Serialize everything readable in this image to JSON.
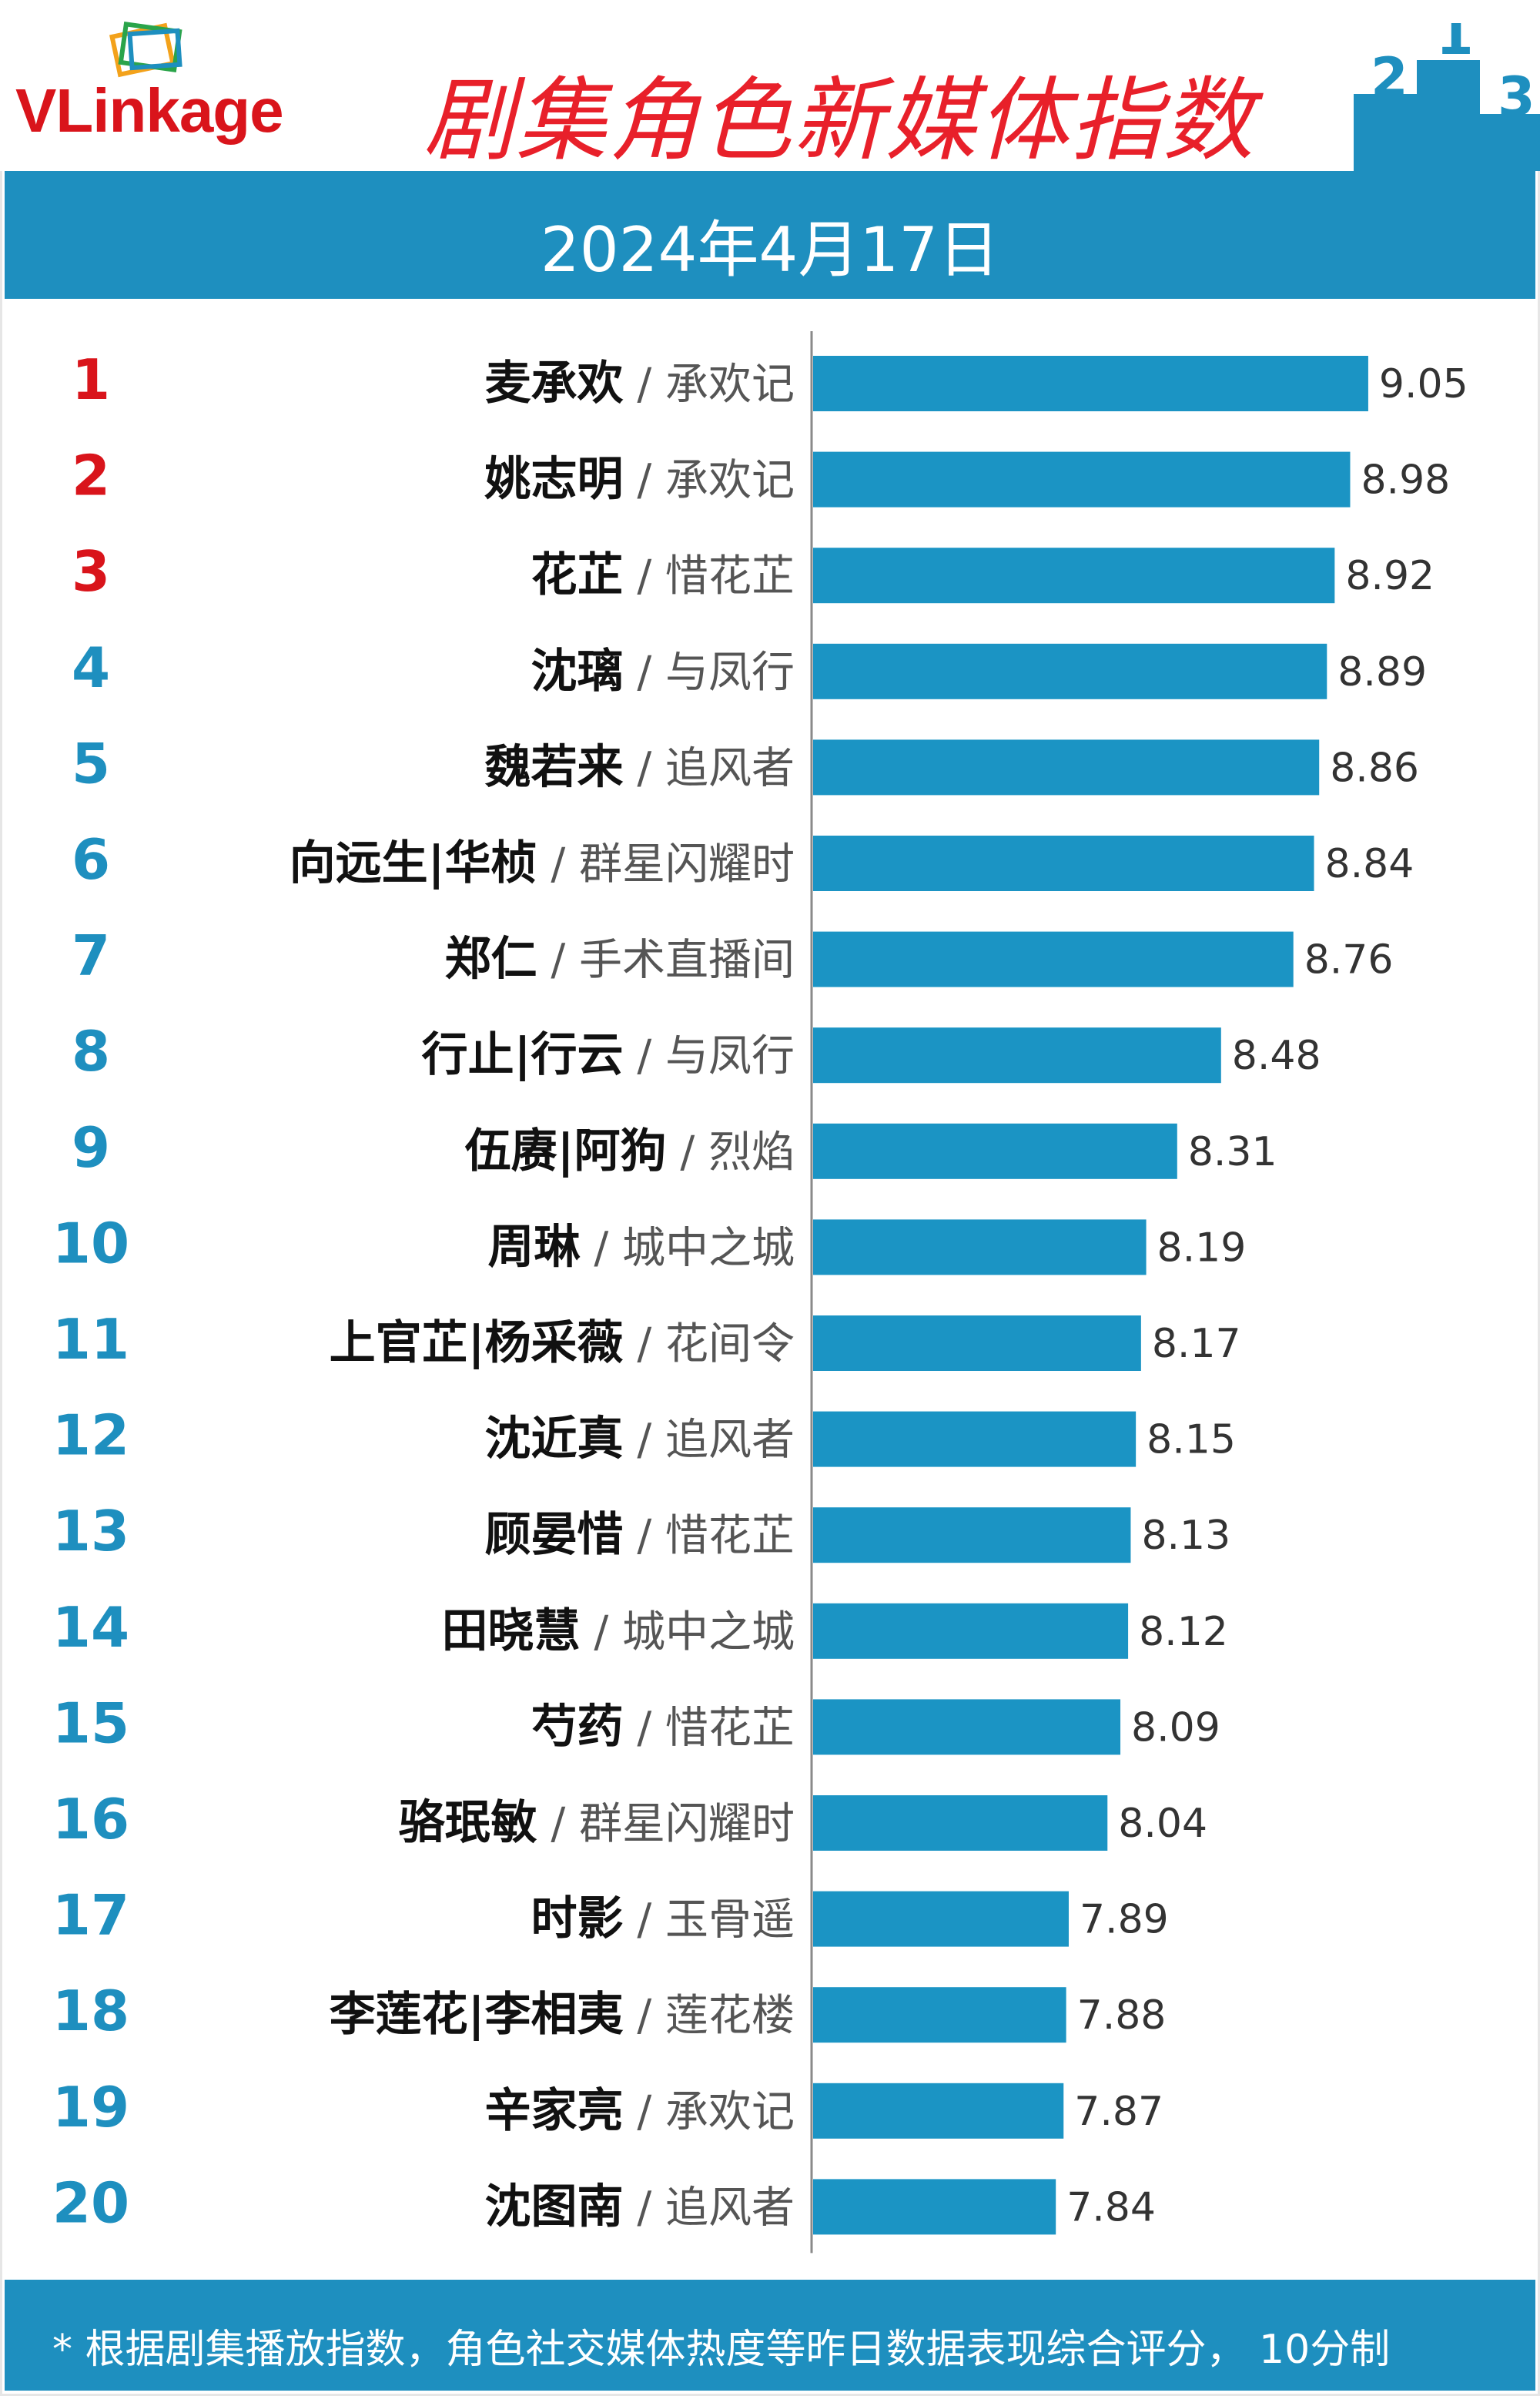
{
  "header": {
    "logo_text": "VLinkage",
    "title": "剧集角色新媒体指数",
    "podium_labels": [
      "2",
      "1",
      "3"
    ]
  },
  "date": "2024年4月17日",
  "footer": {
    "note": "* 根据剧集播放指数，角色社交媒体热度等昨日数据表现综合评分， 10分制"
  },
  "colors": {
    "bar": "#1b94c4",
    "rank_top3": "#d9141b",
    "rank_other": "#1e8fbf",
    "band": "#1e8fbf",
    "title": "#e8202a"
  },
  "chart_data": {
    "type": "bar",
    "orientation": "horizontal",
    "title": "剧集角色新媒体指数",
    "xlim": [
      6.9,
      9.25
    ],
    "categories": [
      {
        "rank": "1",
        "role": "麦承欢",
        "show": "承欢记",
        "value": 9.05
      },
      {
        "rank": "2",
        "role": "姚志明",
        "show": "承欢记",
        "value": 8.98
      },
      {
        "rank": "3",
        "role": "花芷",
        "show": "惜花芷",
        "value": 8.92
      },
      {
        "rank": "4",
        "role": "沈璃",
        "show": "与凤行",
        "value": 8.89
      },
      {
        "rank": "5",
        "role": "魏若来",
        "show": "追风者",
        "value": 8.86
      },
      {
        "rank": "6",
        "role": "向远生|华桢",
        "show": "群星闪耀时",
        "value": 8.84
      },
      {
        "rank": "7",
        "role": "郑仁",
        "show": "手术直播间",
        "value": 8.76
      },
      {
        "rank": "8",
        "role": "行止|行云",
        "show": "与凤行",
        "value": 8.48
      },
      {
        "rank": "9",
        "role": "伍赓|阿狗",
        "show": "烈焰",
        "value": 8.31
      },
      {
        "rank": "10",
        "role": "周琳",
        "show": "城中之城",
        "value": 8.19
      },
      {
        "rank": "11",
        "role": "上官芷|杨采薇",
        "show": "花间令",
        "value": 8.17
      },
      {
        "rank": "12",
        "role": "沈近真",
        "show": "追风者",
        "value": 8.15
      },
      {
        "rank": "13",
        "role": "顾晏惜",
        "show": "惜花芷",
        "value": 8.13
      },
      {
        "rank": "14",
        "role": "田晓慧",
        "show": "城中之城",
        "value": 8.12
      },
      {
        "rank": "15",
        "role": "芍药",
        "show": "惜花芷",
        "value": 8.09
      },
      {
        "rank": "16",
        "role": "骆珉敏",
        "show": "群星闪耀时",
        "value": 8.04
      },
      {
        "rank": "17",
        "role": "时影",
        "show": "玉骨遥",
        "value": 7.89
      },
      {
        "rank": "18",
        "role": "李莲花|李相夷",
        "show": "莲花楼",
        "value": 7.88
      },
      {
        "rank": "19",
        "role": "辛家亮",
        "show": "承欢记",
        "value": 7.87
      },
      {
        "rank": "20",
        "role": "沈图南",
        "show": "追风者",
        "value": 7.84
      }
    ]
  }
}
